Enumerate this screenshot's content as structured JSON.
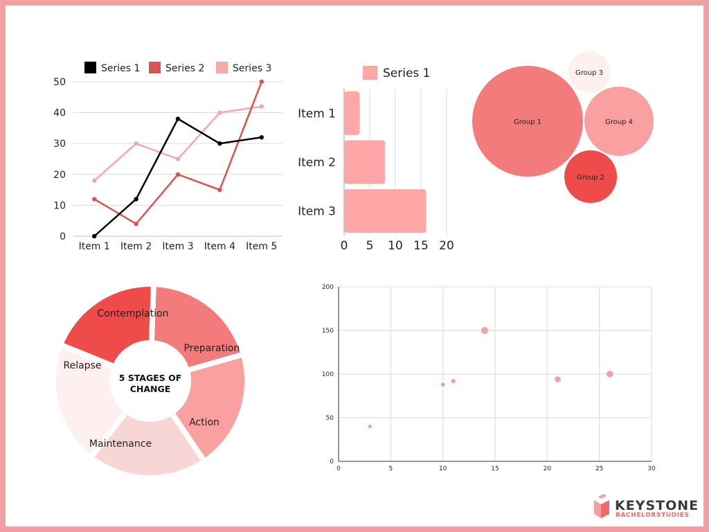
{
  "colors": {
    "border": "#f0a0a3",
    "black": "#000000",
    "red": "#d9534f",
    "pink": "#f4a9aa",
    "bar": "#ffa7a7",
    "grid": "#d9d9d9",
    "bubble": "#f0938f"
  },
  "chart_data": [
    {
      "type": "line",
      "categories": [
        "Item 1",
        "Item 2",
        "Item 3",
        "Item 4",
        "Item 5"
      ],
      "series": [
        {
          "name": "Series 1",
          "color": "#000000",
          "values": [
            0,
            12,
            38,
            30,
            32
          ]
        },
        {
          "name": "Series 2",
          "color": "#d9534f",
          "values": [
            12,
            4,
            20,
            15,
            50
          ]
        },
        {
          "name": "Series 3",
          "color": "#f4a9aa",
          "values": [
            18,
            30,
            25,
            40,
            42
          ]
        }
      ],
      "yticks": [
        "0",
        "10",
        "20",
        "30",
        "40",
        "50"
      ],
      "ylim": [
        0,
        50
      ],
      "grid": true,
      "legend": "top"
    },
    {
      "type": "bar",
      "orientation": "horizontal",
      "categories": [
        "Item 1",
        "Item 2",
        "Item 3"
      ],
      "series": [
        {
          "name": "Series 1",
          "color": "#ffa7a7",
          "values": [
            3,
            8,
            16
          ]
        }
      ],
      "xticks": [
        "0",
        "5",
        "10",
        "15",
        "20"
      ],
      "xlim": [
        0,
        20
      ],
      "grid": true,
      "legend": "top"
    },
    {
      "type": "bubble",
      "groups": [
        {
          "label": "Group 1",
          "color": "#f47b7b",
          "size": 80
        },
        {
          "label": "Group 2",
          "color": "#f04b4b",
          "size": 38
        },
        {
          "label": "Group 3",
          "color": "#fdf0ef",
          "size": 30
        },
        {
          "label": "Group 4",
          "color": "#fba0a0",
          "size": 50
        }
      ]
    },
    {
      "type": "scatter",
      "points": [
        {
          "x": 3,
          "y": 40,
          "size": 1
        },
        {
          "x": 10,
          "y": 88,
          "size": 1.3
        },
        {
          "x": 11,
          "y": 92,
          "size": 1.6
        },
        {
          "x": 14,
          "y": 150,
          "size": 5
        },
        {
          "x": 21,
          "y": 94,
          "size": 3.5
        },
        {
          "x": 26,
          "y": 100,
          "size": 4.5
        }
      ],
      "xticks": [
        "0",
        "5",
        "10",
        "15",
        "20",
        "25",
        "30"
      ],
      "yticks": [
        "0",
        "50",
        "100",
        "150",
        "200"
      ],
      "xlim": [
        0,
        30
      ],
      "ylim": [
        0,
        200
      ],
      "grid": true
    }
  ],
  "diagram": {
    "center_line1": "5 STAGES OF",
    "center_line2": "CHANGE",
    "stages": [
      {
        "label": "Contemplation",
        "color": "#f04b4b"
      },
      {
        "label": "Preparation",
        "color": "#f47b7b"
      },
      {
        "label": "Action",
        "color": "#fba0a0"
      },
      {
        "label": "Maintenance",
        "color": "#f9d6d6"
      },
      {
        "label": "Relapse",
        "color": "#fdf0ef"
      }
    ]
  },
  "logo": {
    "title": "KEYSTONE",
    "subtitle": "BACHELORSTUDIES",
    "icon": "book-icon"
  }
}
